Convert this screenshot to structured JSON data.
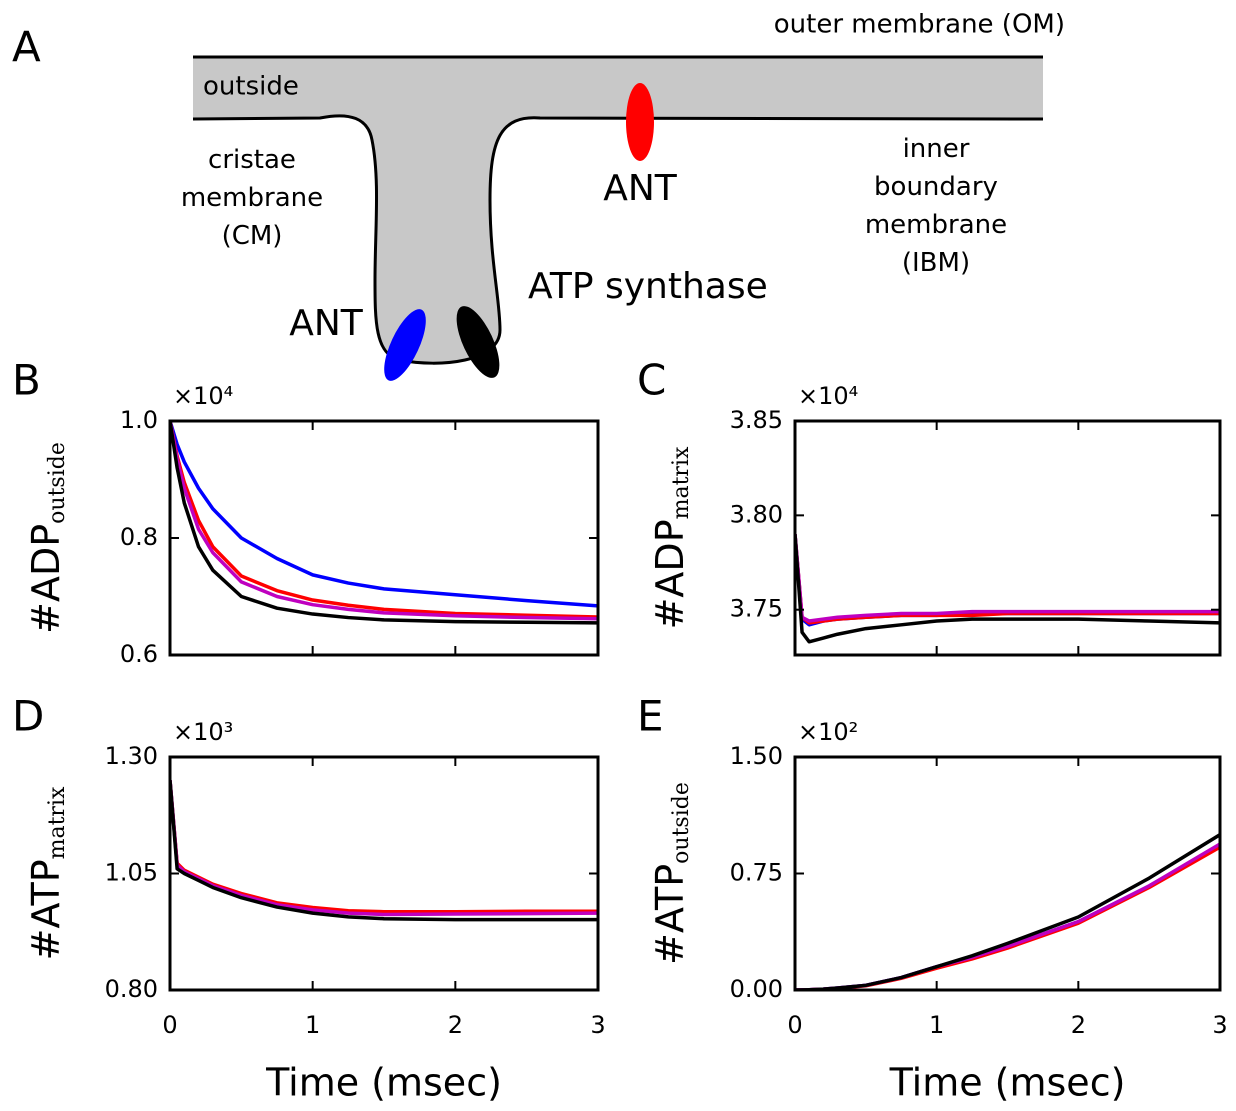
{
  "diagram": {
    "panel": "A",
    "om_label": "outer membrane (OM)",
    "outside_label": "outside",
    "cm_label": [
      "cristae",
      "membrane",
      "(CM)"
    ],
    "ibm_label": [
      "inner",
      "boundary",
      "membrane",
      "(IBM)"
    ],
    "ant_ibm": "ANT",
    "ant_cm": "ANT",
    "atp_synthase": "ATP synthase"
  },
  "chart_data": [
    {
      "type": "line",
      "panel": "B",
      "exponent": "×10⁴",
      "ylabel": "#ADP",
      "ylabel_sub": "outside",
      "x": [
        0,
        0.05,
        0.1,
        0.2,
        0.3,
        0.5,
        0.75,
        1,
        1.25,
        1.5,
        2,
        2.5,
        3
      ],
      "xlim": [
        0,
        3
      ],
      "xticks": [
        0,
        1,
        2,
        3
      ],
      "xtick_labels": false,
      "ylim": [
        0.6,
        1.0
      ],
      "yticks": [
        0.6,
        0.8,
        {
          "value": 1,
          "label": "1.0"
        }
      ],
      "series": [
        {
          "color": "#0000ff",
          "values": [
            1.0,
            0.96,
            0.93,
            0.885,
            0.85,
            0.8,
            0.765,
            0.737,
            0.723,
            0.713,
            0.703,
            0.693,
            0.684
          ]
        },
        {
          "color": "#ff0000",
          "values": [
            1.0,
            0.94,
            0.895,
            0.83,
            0.785,
            0.735,
            0.71,
            0.694,
            0.685,
            0.678,
            0.671,
            0.668,
            0.665
          ]
        },
        {
          "color": "#bf00bf",
          "values": [
            1.0,
            0.935,
            0.885,
            0.815,
            0.775,
            0.725,
            0.7,
            0.686,
            0.678,
            0.672,
            0.667,
            0.664,
            0.662
          ]
        },
        {
          "color": "#000000",
          "values": [
            1.0,
            0.92,
            0.86,
            0.785,
            0.745,
            0.7,
            0.68,
            0.67,
            0.664,
            0.66,
            0.657,
            0.656,
            0.655
          ]
        }
      ]
    },
    {
      "type": "line",
      "panel": "C",
      "exponent": "×10⁴",
      "ylabel": "#ADP",
      "ylabel_sub": "matrix",
      "x": [
        0,
        0.05,
        0.1,
        0.2,
        0.3,
        0.5,
        0.75,
        1,
        1.25,
        1.5,
        2,
        2.5,
        3
      ],
      "xlim": [
        0,
        3
      ],
      "xticks": [
        0,
        1,
        2,
        3
      ],
      "xtick_labels": false,
      "ylim": [
        3.726,
        3.85
      ],
      "yticks": [
        3.75,
        {
          "value": 3.8,
          "label": "3.80"
        },
        3.85
      ],
      "series": [
        {
          "color": "#0000ff",
          "values": [
            3.79,
            3.745,
            3.742,
            3.744,
            3.745,
            3.746,
            3.747,
            3.747,
            3.748,
            3.748,
            3.748,
            3.748,
            3.748
          ]
        },
        {
          "color": "#ff0000",
          "values": [
            3.79,
            3.746,
            3.743,
            3.744,
            3.745,
            3.746,
            3.747,
            3.747,
            3.747,
            3.748,
            3.748,
            3.748,
            3.748
          ]
        },
        {
          "color": "#bf00bf",
          "values": [
            3.79,
            3.746,
            3.744,
            3.745,
            3.746,
            3.747,
            3.748,
            3.748,
            3.749,
            3.749,
            3.749,
            3.749,
            3.749
          ]
        },
        {
          "color": "#000000",
          "values": [
            3.79,
            3.738,
            3.733,
            3.735,
            3.737,
            3.74,
            3.742,
            3.744,
            3.745,
            3.745,
            3.745,
            3.744,
            3.743
          ]
        }
      ]
    },
    {
      "type": "line",
      "panel": "D",
      "exponent": "×10³",
      "ylabel": "#ATP",
      "ylabel_sub": "matrix",
      "xlabel": "Time (msec)",
      "x": [
        0,
        0.05,
        0.1,
        0.2,
        0.3,
        0.5,
        0.75,
        1,
        1.25,
        1.5,
        2,
        2.5,
        3
      ],
      "xlim": [
        0,
        3
      ],
      "xticks": [
        0,
        1,
        2,
        3
      ],
      "xtick_labels": true,
      "ylim": [
        0.8,
        1.3
      ],
      "yticks": [
        {
          "value": 0.8,
          "label": "0.80"
        },
        1.05,
        {
          "value": 1.3,
          "label": "1.30"
        }
      ],
      "series": [
        {
          "color": "#0000ff",
          "values": [
            1.25,
            1.07,
            1.055,
            1.04,
            1.025,
            1.005,
            0.985,
            0.975,
            0.968,
            0.966,
            0.966,
            0.967,
            0.967
          ]
        },
        {
          "color": "#ff0000",
          "values": [
            1.25,
            1.072,
            1.057,
            1.042,
            1.027,
            1.007,
            0.987,
            0.977,
            0.97,
            0.968,
            0.968,
            0.969,
            0.969
          ]
        },
        {
          "color": "#bf00bf",
          "values": [
            1.25,
            1.068,
            1.054,
            1.039,
            1.024,
            1.003,
            0.983,
            0.972,
            0.965,
            0.962,
            0.963,
            0.964,
            0.965
          ]
        },
        {
          "color": "#000000",
          "values": [
            1.25,
            1.06,
            1.05,
            1.035,
            1.02,
            0.998,
            0.978,
            0.965,
            0.957,
            0.953,
            0.951,
            0.951,
            0.951
          ]
        }
      ]
    },
    {
      "type": "line",
      "panel": "E",
      "exponent": "×10²",
      "ylabel": "#ATP",
      "ylabel_sub": "outside",
      "xlabel": "Time (msec)",
      "x": [
        0,
        0.05,
        0.1,
        0.2,
        0.3,
        0.5,
        0.75,
        1,
        1.25,
        1.5,
        2,
        2.5,
        3
      ],
      "xlim": [
        0,
        3
      ],
      "xticks": [
        0,
        1,
        2,
        3
      ],
      "xtick_labels": true,
      "ylim": [
        0,
        1.5
      ],
      "yticks": [
        {
          "value": 0,
          "label": "0.00"
        },
        0.75,
        {
          "value": 1.5,
          "label": "1.50"
        }
      ],
      "series": [
        {
          "color": "#0000ff",
          "values": [
            0,
            0.0005,
            0.002,
            0.006,
            0.013,
            0.03,
            0.08,
            0.15,
            0.21,
            0.28,
            0.44,
            0.67,
            0.93
          ]
        },
        {
          "color": "#ff0000",
          "values": [
            0,
            0.0004,
            0.0015,
            0.005,
            0.011,
            0.027,
            0.075,
            0.14,
            0.2,
            0.27,
            0.43,
            0.66,
            0.92
          ]
        },
        {
          "color": "#bf00bf",
          "values": [
            0,
            0.0005,
            0.002,
            0.006,
            0.013,
            0.03,
            0.08,
            0.15,
            0.21,
            0.28,
            0.44,
            0.67,
            0.94
          ]
        },
        {
          "color": "#000000",
          "values": [
            0,
            0.0005,
            0.002,
            0.006,
            0.013,
            0.03,
            0.08,
            0.15,
            0.22,
            0.3,
            0.47,
            0.72,
            1.0
          ]
        }
      ]
    }
  ]
}
